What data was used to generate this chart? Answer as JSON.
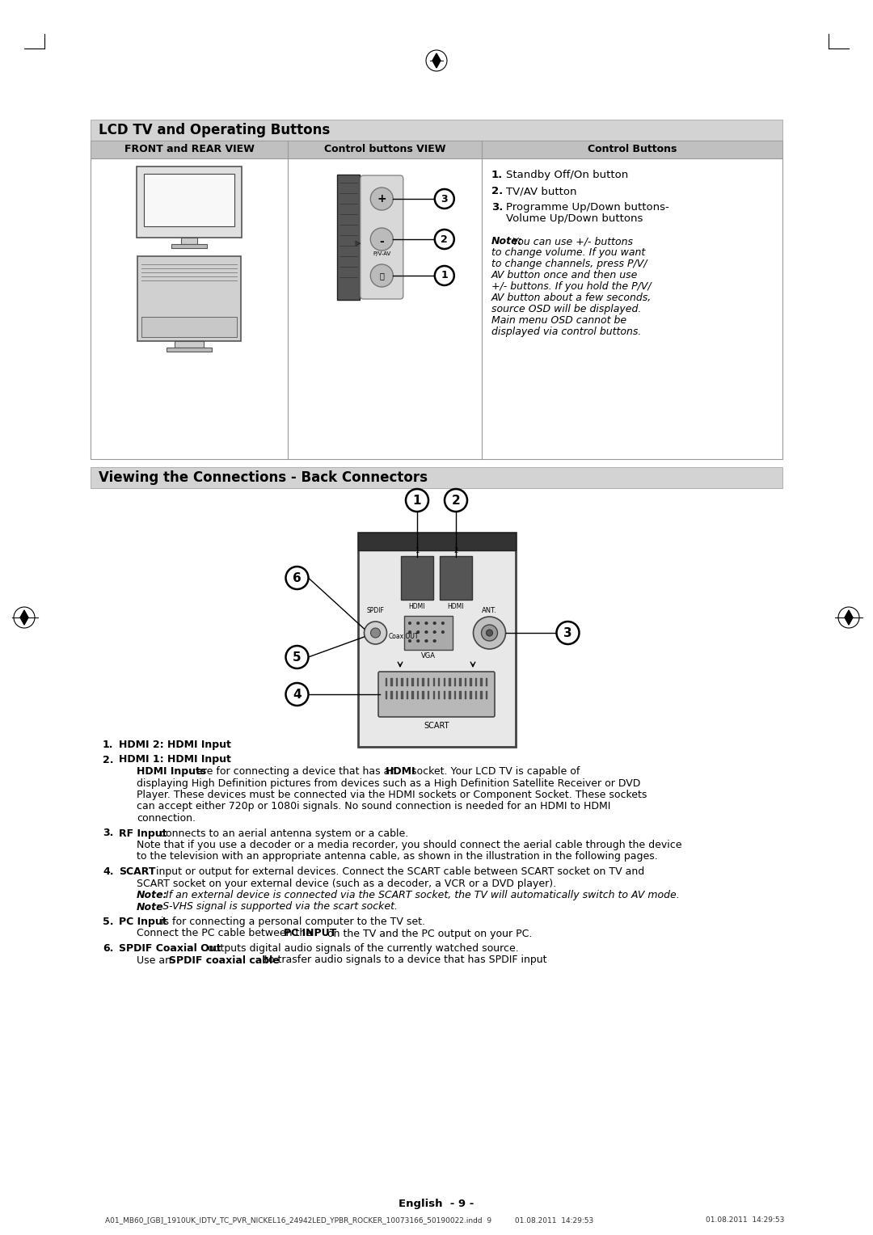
{
  "page_bg": "#ffffff",
  "sec1_title": "LCD TV and Operating Buttons",
  "sec1_bg": "#d3d3d3",
  "sec2_title": "Viewing the Connections - Back Connectors",
  "sec2_bg": "#d3d3d3",
  "header_bg": "#c0c0c0",
  "col1_header": "FRONT and REAR VIEW",
  "col2_header": "Control buttons VIEW",
  "col3_header": "Control Buttons",
  "footer_center": "English  - 9 -",
  "footer_small": "A01_MB60_[GB]_1910UK_IDTV_TC_PVR_NICKEL16_24942LED_YPBR_ROCKER_10073166_50190022.indd  9          01.08.2011  14:29:53"
}
